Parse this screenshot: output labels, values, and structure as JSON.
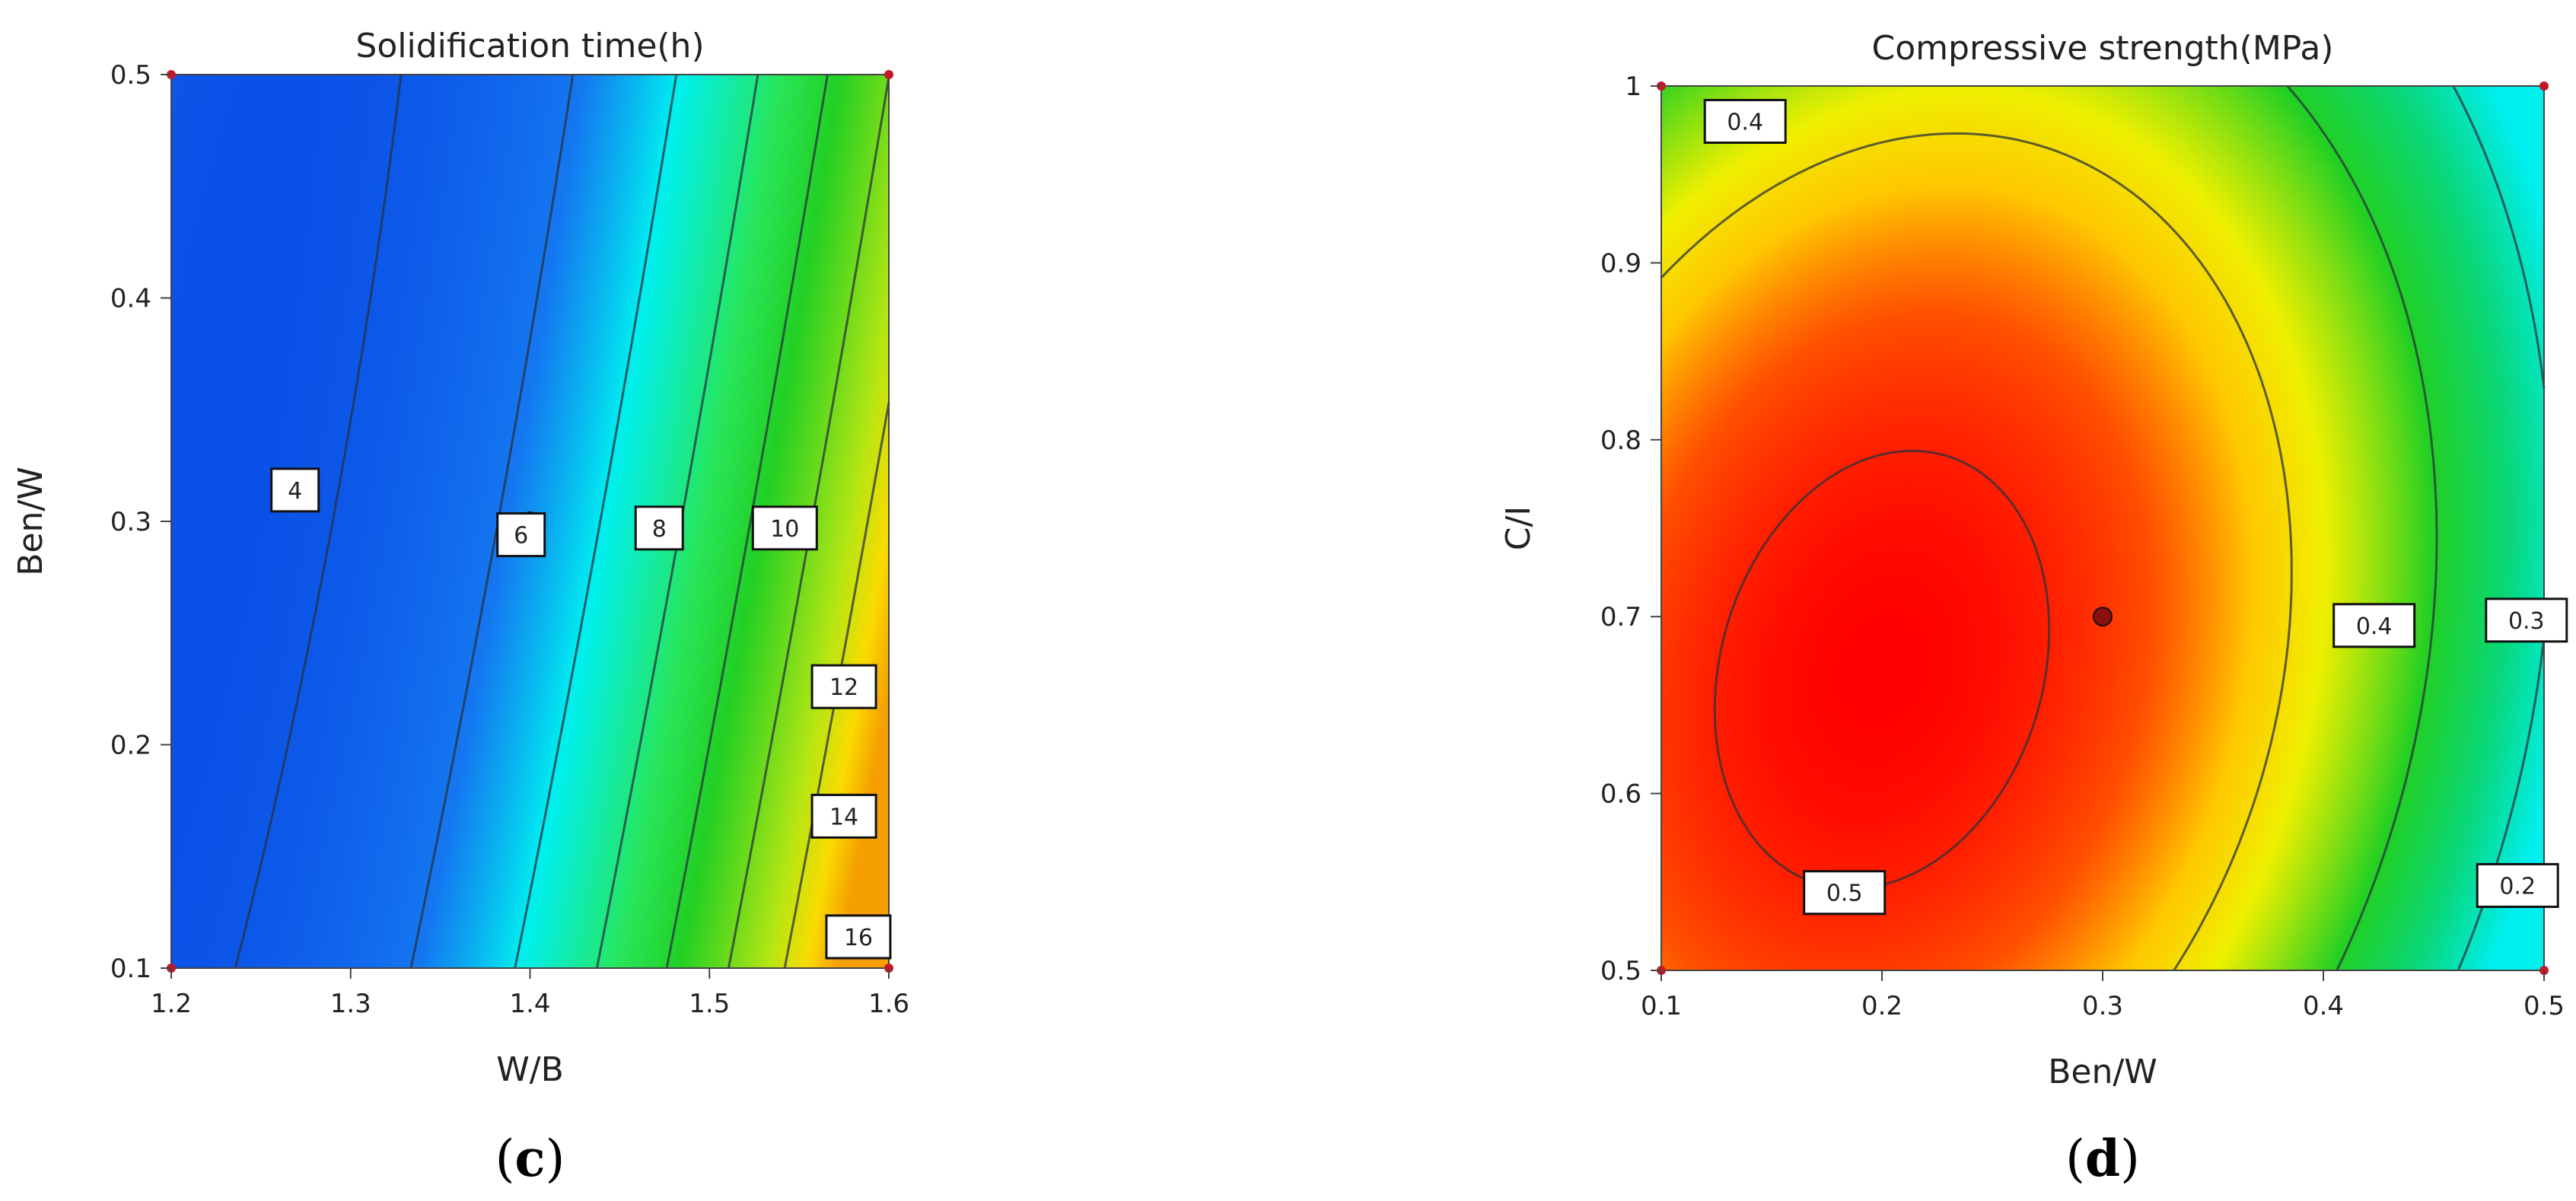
{
  "chart_data": [
    {
      "type": "heatmap",
      "panel_label": "(c)",
      "panel_label_parts": [
        "(",
        "c",
        ")"
      ],
      "title": "Solidification time(h)",
      "xlabel": "W/B",
      "ylabel": "Ben/W",
      "xlim": [
        1.2,
        1.6
      ],
      "ylim": [
        0.1,
        0.5
      ],
      "x_ticks": [
        1.2,
        1.3,
        1.4,
        1.5,
        1.6
      ],
      "y_ticks": [
        0.1,
        0.2,
        0.3,
        0.4,
        0.5
      ],
      "x_tick_labels": [
        "1.2",
        "1.3",
        "1.4",
        "1.5",
        "1.6"
      ],
      "y_tick_labels": [
        "0.1",
        "0.2",
        "0.3",
        "0.4",
        "0.5"
      ],
      "colormap": "blue-cyan-green-yellow-red",
      "colors": {
        "low": "#0a4be6",
        "mid": "#00f0f0",
        "green": "#22d024",
        "high": "#f5a000"
      },
      "value_range": [
        3.2,
        18.0
      ],
      "surface": "quadratic in W/B and Ben/W; minimum ~3.5 h near W/B 1.22, Ben/W 0.32; maximum ~17 h at W/B 1.6, Ben/W 0.1",
      "contour_levels": [
        4,
        6,
        8,
        10,
        12,
        14,
        16
      ],
      "contour_labels": [
        {
          "text": "4",
          "x": 1.269,
          "y": 0.314
        },
        {
          "text": "6",
          "x": 1.395,
          "y": 0.294
        },
        {
          "text": "8",
          "x": 1.472,
          "y": 0.297
        },
        {
          "text": "10",
          "x": 1.542,
          "y": 0.297
        },
        {
          "text": "12",
          "x": 1.575,
          "y": 0.226
        },
        {
          "text": "14",
          "x": 1.575,
          "y": 0.168
        },
        {
          "text": "16",
          "x": 1.583,
          "y": 0.114
        }
      ],
      "design_points": [
        {
          "x": 1.4,
          "y": 0.3,
          "kind": "center-point"
        }
      ]
    },
    {
      "type": "heatmap",
      "panel_label": "(d)",
      "panel_label_parts": [
        "(",
        "d",
        ")"
      ],
      "title": "Compressive strength(MPa)",
      "xlabel": "Ben/W",
      "ylabel": "C/I",
      "xlim": [
        0.1,
        0.5
      ],
      "ylim": [
        0.5,
        1.0
      ],
      "x_ticks": [
        0.1,
        0.2,
        0.3,
        0.4,
        0.5
      ],
      "y_ticks": [
        0.5,
        0.6,
        0.7,
        0.8,
        0.9,
        1.0
      ],
      "x_tick_labels": [
        "0.1",
        "0.2",
        "0.3",
        "0.4",
        "0.5"
      ],
      "y_tick_labels": [
        "0.5",
        "0.6",
        "0.7",
        "0.8",
        "0.9",
        "1"
      ],
      "colormap": "cyan-green-yellow-red",
      "colors": {
        "low": "#00f0f0",
        "green": "#22d024",
        "mid": "#f0f000",
        "high": "#ff0000"
      },
      "value_range": [
        0.17,
        0.52
      ],
      "surface": "quadratic in Ben/W and C/I; maximum ~0.52 MPa near Ben/W 0.2, C/I 0.67; minimum ~0.17 MPa at Ben/W 0.5, C/I 0.5",
      "contour_levels": [
        0.2,
        0.3,
        0.4,
        0.5
      ],
      "contour_labels": [
        {
          "text": "0.4",
          "x": 0.138,
          "y": 0.98
        },
        {
          "text": "0.4",
          "x": 0.423,
          "y": 0.695
        },
        {
          "text": "0.3",
          "x": 0.492,
          "y": 0.698
        },
        {
          "text": "0.5",
          "x": 0.183,
          "y": 0.544
        },
        {
          "text": "0.2",
          "x": 0.488,
          "y": 0.548
        }
      ],
      "design_points": [
        {
          "x": 0.3,
          "y": 0.7,
          "kind": "center-point"
        }
      ]
    }
  ]
}
